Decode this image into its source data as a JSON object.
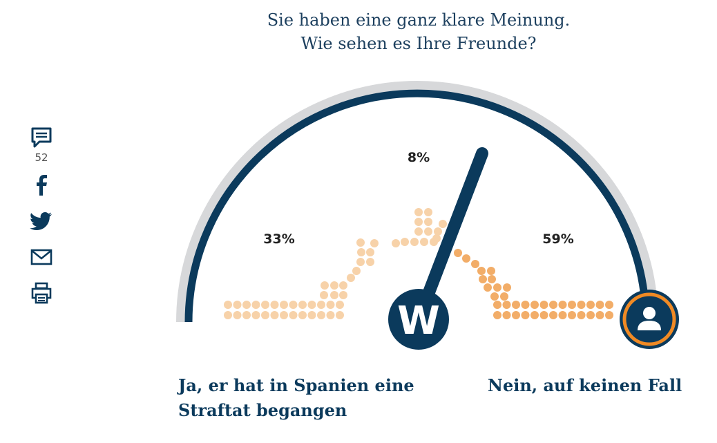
{
  "question": {
    "line1": "Sie haben eine ganz klare Meinung.",
    "line2": "Wie sehen es Ihre Freunde?"
  },
  "share": {
    "comment_count": "52",
    "icons": [
      "comment-icon",
      "facebook-icon",
      "twitter-icon",
      "mail-icon",
      "print-icon"
    ]
  },
  "gauge": {
    "logo_letter": "W",
    "left_percent": "33%",
    "middle_percent": "8%",
    "right_percent": "59%",
    "needle_value": 0.39
  },
  "answers": {
    "left_line1": "Ja, er hat in Spanien eine",
    "left_line2": "Straftat begangen",
    "right": "Nein, auf keinen Fall"
  },
  "colors": {
    "navy": "#0b3a5c",
    "arc_grey": "#d7d8da",
    "dot_light": "#f7d2a9",
    "dot_dark": "#f2ad68",
    "accent_orange": "#f08a24"
  }
}
